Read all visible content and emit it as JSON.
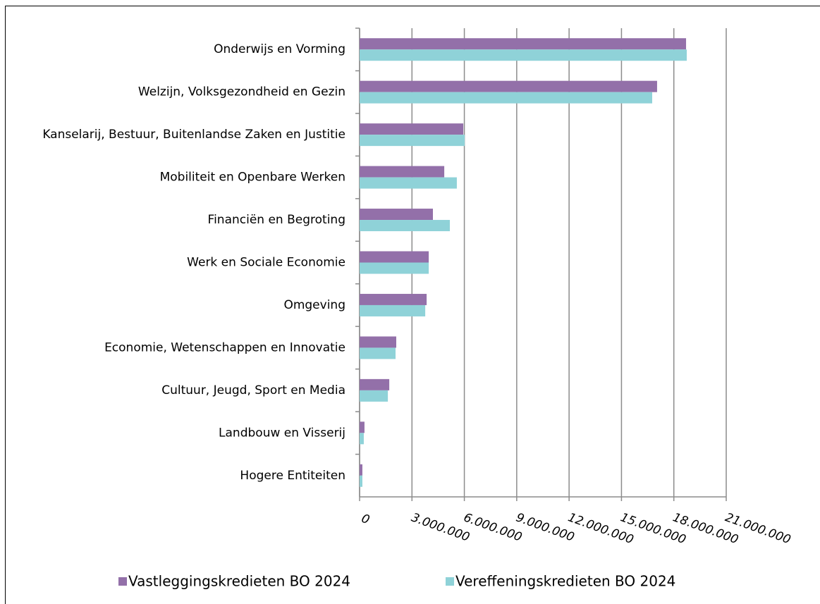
{
  "chart_data": {
    "type": "hbar",
    "categories": [
      "Onderwijs en Vorming",
      "Welzijn, Volksgezondheid en Gezin",
      "Kanselarij, Bestuur, Buitenlandse Zaken en Justitie",
      "Mobiliteit en Openbare Werken",
      "Financiën en Begroting",
      "Werk en Sociale Economie",
      "Omgeving",
      "Economie, Wetenschappen en Innovatie",
      "Cultuur, Jeugd, Sport en Media",
      "Landbouw en Visserij",
      "Hogere Entiteiten"
    ],
    "series": [
      {
        "name": "Vastleggingskredieten BO 2024",
        "color": "#9370a9",
        "values": [
          18700000,
          17040000,
          5940000,
          4850000,
          4200000,
          3960000,
          3840000,
          2100000,
          1700000,
          280000,
          160000
        ]
      },
      {
        "name": "Vereffeningskredieten BO 2024",
        "color": "#8fd2d8",
        "values": [
          18740000,
          16760000,
          6020000,
          5570000,
          5170000,
          3960000,
          3760000,
          2060000,
          1620000,
          240000,
          160000
        ]
      }
    ],
    "xlim": [
      0,
      21000000
    ],
    "xticks": [
      0,
      {
        "value": 3000000,
        "label": "3.000.000"
      },
      {
        "value": 6000000,
        "label": "6.000.000"
      },
      {
        "value": 9000000,
        "label": "9.000.000"
      },
      {
        "value": 12000000,
        "label": "12.000.000"
      },
      {
        "value": 15000000,
        "label": "15.000.000"
      },
      {
        "value": 18000000,
        "label": "18.000.000"
      },
      {
        "value": 21000000,
        "label": "21.000.000"
      }
    ],
    "grid": true,
    "legend": "bottom"
  }
}
